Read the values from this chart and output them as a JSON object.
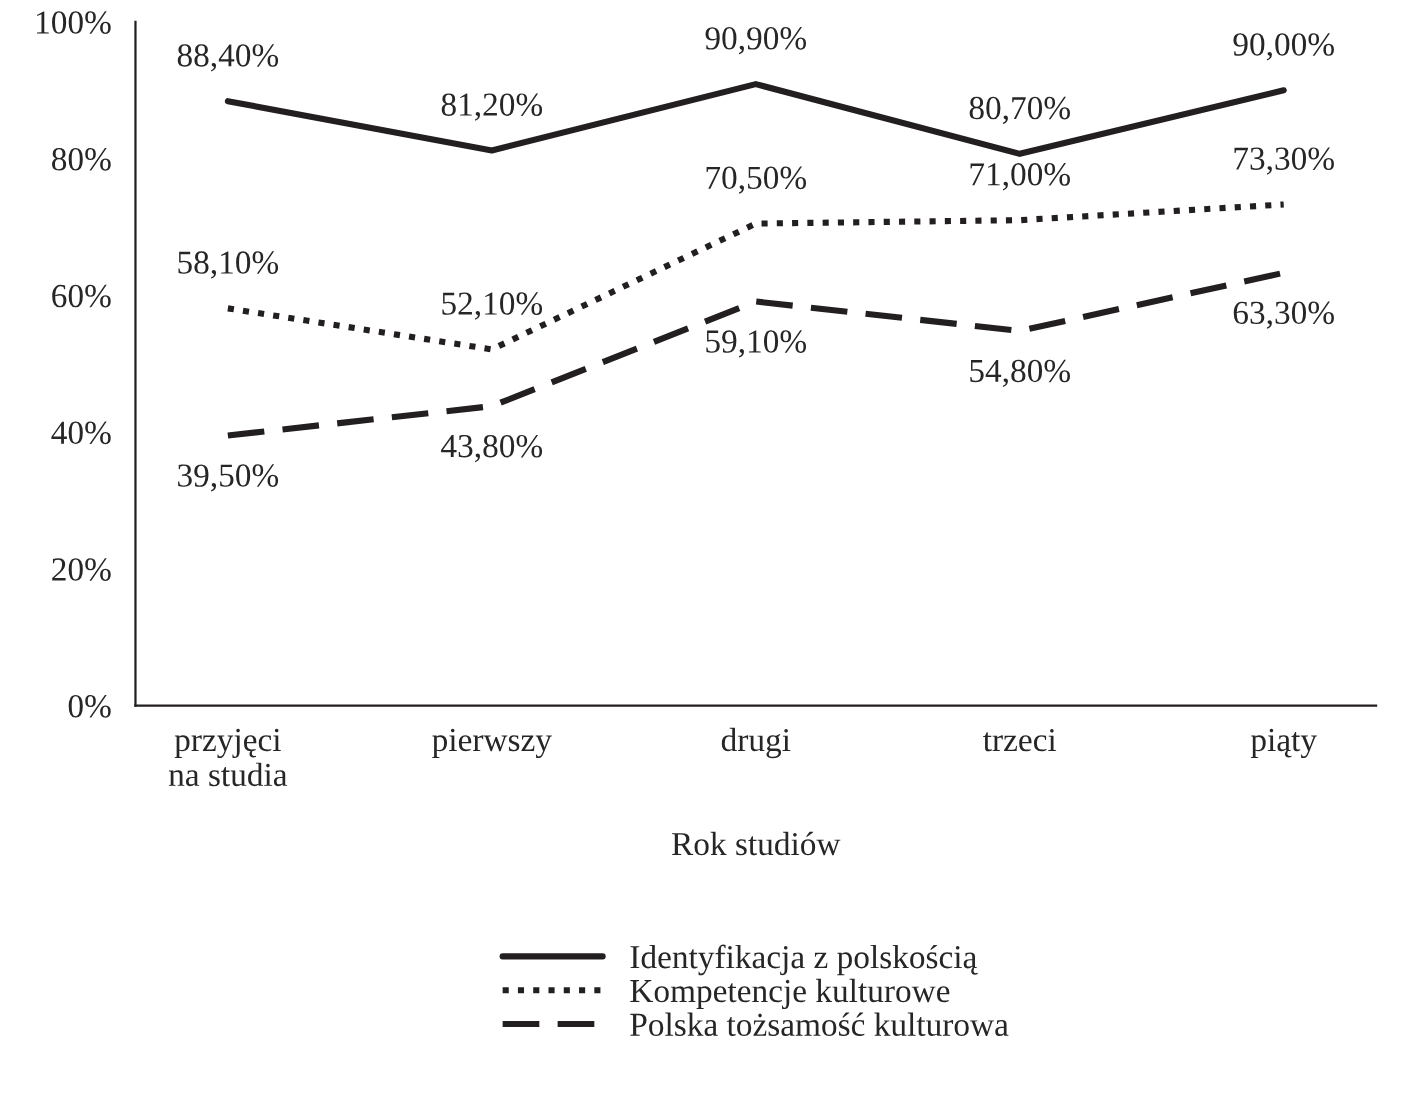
{
  "chart_data": {
    "type": "line",
    "xlabel": "Rok studiów",
    "categories": [
      "przyjęci\nna studia",
      "pierwszy",
      "drugi",
      "trzeci",
      "piąty"
    ],
    "series": [
      {
        "name": "Identyfikacja z polskością",
        "color": "#231f20",
        "line_style": "solid",
        "values": [
          88.4,
          81.2,
          90.9,
          80.7,
          90.0
        ],
        "value_labels": [
          "88,40%",
          "81,20%",
          "90,90%",
          "80,70%",
          "90,00%"
        ]
      },
      {
        "name": "Kompetencje kulturowe",
        "color": "#231f20",
        "line_style": "dotted",
        "values": [
          58.1,
          52.1,
          70.5,
          71.0,
          73.3
        ],
        "value_labels": [
          "58,10%",
          "52,10%",
          "70,50%",
          "71,00%",
          "73,30%"
        ]
      },
      {
        "name": "Polska tożsamość kulturowa",
        "color": "#231f20",
        "line_style": "dashed",
        "values": [
          39.5,
          43.8,
          59.1,
          54.8,
          63.3
        ],
        "value_labels": [
          "39,50%",
          "43,80%",
          "59,10%",
          "54,80%",
          "63,30%"
        ]
      }
    ],
    "ylim": [
      0,
      100
    ],
    "yticks": [
      {
        "value": 0,
        "label": "0%"
      },
      {
        "value": 20,
        "label": "20%"
      },
      {
        "value": 40,
        "label": "40%"
      },
      {
        "value": 60,
        "label": "60%"
      },
      {
        "value": 80,
        "label": "80%"
      },
      {
        "value": 100,
        "label": "100%"
      }
    ],
    "grid": false,
    "legend": "bottom",
    "marker": "none"
  }
}
